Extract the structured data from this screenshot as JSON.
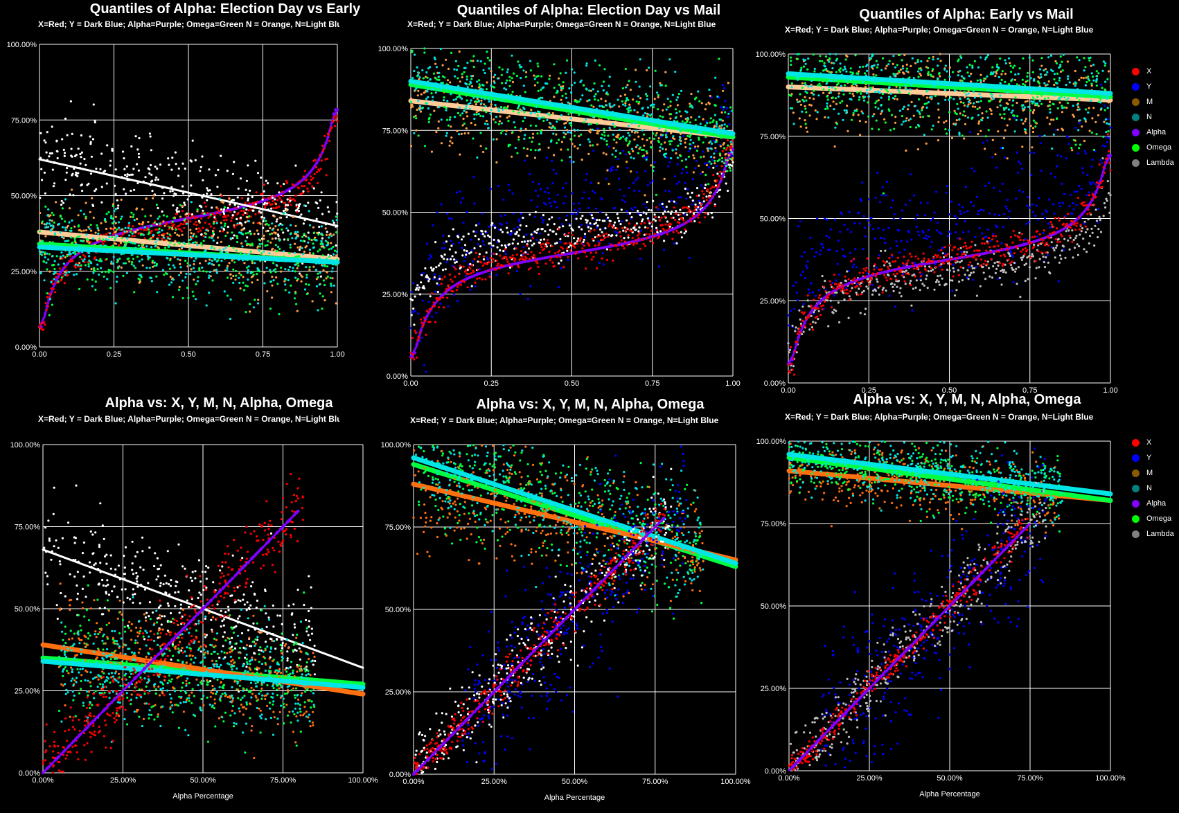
{
  "chart_data": [
    {
      "type": "scatter",
      "title": "Quantiles of Alpha:  Election Day vs Early",
      "subtitle": "X=Red; Y = Dark Blue; Alpha=Purple; Omega=Green N = Orange, N=Light Blue",
      "xlabel": "",
      "ylabel": "",
      "xlim": [
        0,
        1
      ],
      "ylim": [
        0,
        100
      ],
      "xticks": [
        "0.00",
        "0.25",
        "0.50",
        "0.75",
        "1.00"
      ],
      "yticks": [
        "0.00%",
        "25.00%",
        "50.00%",
        "75.00%",
        "100.00%"
      ],
      "grid": true,
      "series": [
        {
          "role": "alpha",
          "color": "#8000ff",
          "trend": "quantile",
          "y_start": 0,
          "y_end": 85
        },
        {
          "role": "x",
          "color": "#ff0000",
          "trend": "quantile",
          "y_start": 0,
          "y_end": 82
        },
        {
          "role": "lambda",
          "color": "#ffffff",
          "trend": "line",
          "y_start": 62,
          "y_end": 40
        },
        {
          "role": "m",
          "color": "#ffa040",
          "trend": "line",
          "y_start": 38,
          "y_end": 29
        },
        {
          "role": "omega",
          "color": "#00ff40",
          "trend": "line",
          "y_start": 34,
          "y_end": 28
        },
        {
          "role": "n",
          "color": "#00e5e5",
          "trend": "line",
          "y_start": 33,
          "y_end": 28
        }
      ]
    },
    {
      "type": "scatter",
      "title": "Quantiles of Alpha:  Election Day vs Mail",
      "subtitle": "X=Red; Y = Dark Blue; Alpha=Purple; Omega=Green N = Orange, N=Light Blue",
      "xlabel": "",
      "ylabel": "",
      "xlim": [
        0,
        1
      ],
      "ylim": [
        0,
        100
      ],
      "xticks": [
        "0.00",
        "0.25",
        "0.50",
        "0.75",
        "1.00"
      ],
      "yticks": [
        "0.00%",
        "25.00%",
        "50.00%",
        "75.00%",
        "100.00%"
      ],
      "grid": true,
      "series": [
        {
          "role": "y",
          "color": "#0000ff",
          "trend": "quantile",
          "y_start": 10,
          "y_end": 88
        },
        {
          "role": "lambda",
          "color": "#ffffff",
          "trend": "quantile",
          "y_start": 18,
          "y_end": 70
        },
        {
          "role": "alpha",
          "color": "#8000ff",
          "trend": "quantile",
          "y_start": 0,
          "y_end": 75
        },
        {
          "role": "x",
          "color": "#ff0000",
          "trend": "quantile",
          "y_start": 0,
          "y_end": 78
        },
        {
          "role": "m",
          "color": "#ffa040",
          "trend": "line",
          "y_start": 84,
          "y_end": 73
        },
        {
          "role": "omega",
          "color": "#00ff40",
          "trend": "line",
          "y_start": 89,
          "y_end": 73
        },
        {
          "role": "n",
          "color": "#00e5e5",
          "trend": "line",
          "y_start": 90,
          "y_end": 74
        }
      ]
    },
    {
      "type": "scatter",
      "title": "Quantiles of Alpha:  Early vs Mail",
      "subtitle": "X=Red; Y = Dark Blue; Alpha=Purple; Omega=Green N = Orange, N=Light Blue",
      "xlabel": "",
      "ylabel": "",
      "xlim": [
        0,
        1
      ],
      "ylim": [
        0,
        100
      ],
      "xticks": [
        "0.00",
        "0.25",
        "0.50",
        "0.75",
        "1.00"
      ],
      "yticks": [
        "0.00%",
        "25.00%",
        "50.00%",
        "75.00%",
        "100.00%"
      ],
      "grid": true,
      "legend": "right",
      "series": [
        {
          "role": "y",
          "color": "#0000ff",
          "trend": "quantile",
          "y_start": 15,
          "y_end": 82
        },
        {
          "role": "lambda",
          "color": "#c0c0c0",
          "trend": "quantile",
          "y_start": 5,
          "y_end": 62
        },
        {
          "role": "alpha",
          "color": "#8000ff",
          "trend": "quantile",
          "y_start": 0,
          "y_end": 75
        },
        {
          "role": "x",
          "color": "#ff0000",
          "trend": "quantile",
          "y_start": 0,
          "y_end": 75
        },
        {
          "role": "m",
          "color": "#ffa040",
          "trend": "line",
          "y_start": 90,
          "y_end": 86
        },
        {
          "role": "omega",
          "color": "#00ff40",
          "trend": "line",
          "y_start": 93,
          "y_end": 87
        },
        {
          "role": "n",
          "color": "#00e5e5",
          "trend": "line",
          "y_start": 94,
          "y_end": 88
        }
      ]
    },
    {
      "type": "scatter",
      "title": "Alpha vs: X, Y, M, N, Alpha, Omega",
      "subtitle": "X=Red; Y = Dark Blue; Alpha=Purple; Omega=Green N = Orange, N=Light Blue",
      "xlabel": "Alpha Percentage",
      "ylabel": "",
      "xlim": [
        0,
        100
      ],
      "ylim": [
        0,
        100
      ],
      "xticks": [
        "0.00%",
        "25.00%",
        "50.00%",
        "75.00%",
        "100.00%"
      ],
      "yticks": [
        "0.00%",
        "25.00%",
        "50.00%",
        "75.00%",
        "100.00%"
      ],
      "grid": true,
      "series": [
        {
          "role": "lambda",
          "color": "#ffffff",
          "trend": "line",
          "y_start": 68,
          "y_end": 32,
          "x_range": [
            0,
            85
          ],
          "spread": 8
        },
        {
          "role": "omega",
          "color": "#00ff40",
          "trend": "line",
          "y_start": 35,
          "y_end": 27,
          "x_range": [
            5,
            85
          ],
          "spread": 8
        },
        {
          "role": "m",
          "color": "#ff7010",
          "trend": "line",
          "y_start": 39,
          "y_end": 24,
          "x_range": [
            5,
            85
          ],
          "spread": 8
        },
        {
          "role": "n",
          "color": "#00e5e5",
          "trend": "line",
          "y_start": 34,
          "y_end": 26,
          "x_range": [
            5,
            85
          ],
          "spread": 8
        },
        {
          "role": "x",
          "color": "#ff0000",
          "trend": "identity",
          "x_range": [
            0,
            82
          ],
          "spread": 5
        },
        {
          "role": "alpha",
          "color": "#8000ff",
          "trend": "identity",
          "x_range": [
            0,
            80
          ],
          "spread": 0
        }
      ]
    },
    {
      "type": "scatter",
      "title": "Alpha vs: X, Y, M, N, Alpha, Omega",
      "subtitle": "X=Red; Y = Dark Blue; Alpha=Purple; Omega=Green N = Orange, N=Light Blue",
      "xlabel": "Alpha Percentage",
      "ylabel": "",
      "xlim": [
        0,
        100
      ],
      "ylim": [
        0,
        100
      ],
      "xticks": [
        "0.00%",
        "25.00%",
        "50.00%",
        "75.00%",
        "100.00%"
      ],
      "yticks": [
        "0.00%",
        "25.00%",
        "50.00%",
        "75.00%",
        "100.00%"
      ],
      "grid": true,
      "series": [
        {
          "role": "omega",
          "color": "#00ff40",
          "trend": "line",
          "y_start": 94,
          "y_end": 63,
          "x_range": [
            0,
            90
          ],
          "spread": 9
        },
        {
          "role": "m",
          "color": "#ff7010",
          "trend": "line",
          "y_start": 88,
          "y_end": 65,
          "x_range": [
            0,
            90
          ],
          "spread": 9
        },
        {
          "role": "n",
          "color": "#00e5e5",
          "trend": "line",
          "y_start": 96,
          "y_end": 64,
          "x_range": [
            0,
            90
          ],
          "spread": 9
        },
        {
          "role": "y",
          "color": "#0000ff",
          "trend": "identity",
          "x_range": [
            15,
            85
          ],
          "spread": 12
        },
        {
          "role": "lambda",
          "color": "#ffffff",
          "trend": "identity",
          "x_range": [
            0,
            80
          ],
          "spread": 6
        },
        {
          "role": "x",
          "color": "#ff0000",
          "trend": "identity",
          "x_range": [
            0,
            78
          ],
          "spread": 3
        },
        {
          "role": "alpha",
          "color": "#8000ff",
          "trend": "identity",
          "x_range": [
            0,
            78
          ],
          "spread": 0
        }
      ]
    },
    {
      "type": "scatter",
      "title": "Alpha vs: X, Y, M, N, Alpha, Omega",
      "subtitle": "X=Red; Y = Dark Blue; Alpha=Purple; Omega=Green N = Orange, N=Light Blue",
      "xlabel": "Alpha Percentage",
      "ylabel": "",
      "xlim": [
        0,
        100
      ],
      "ylim": [
        0,
        100
      ],
      "xticks": [
        "0.00%",
        "25.00%",
        "50.00%",
        "75.00%",
        "100.00%"
      ],
      "yticks": [
        "0.00%",
        "25.00%",
        "50.00%",
        "75.00%",
        "100.00%"
      ],
      "grid": true,
      "legend": "right",
      "series": [
        {
          "role": "m",
          "color": "#ff7010",
          "trend": "line",
          "y_start": 91,
          "y_end": 82,
          "x_range": [
            0,
            85
          ],
          "spread": 5
        },
        {
          "role": "omega",
          "color": "#00ff40",
          "trend": "line",
          "y_start": 95,
          "y_end": 82,
          "x_range": [
            0,
            85
          ],
          "spread": 5
        },
        {
          "role": "n",
          "color": "#00e5e5",
          "trend": "line",
          "y_start": 96,
          "y_end": 84,
          "x_range": [
            0,
            85
          ],
          "spread": 5
        },
        {
          "role": "y",
          "color": "#0000ff",
          "trend": "identity",
          "x_range": [
            10,
            80
          ],
          "spread": 12
        },
        {
          "role": "lambda",
          "color": "#c0c0c0",
          "trend": "identity",
          "x_range": [
            0,
            80
          ],
          "spread": 5
        },
        {
          "role": "x",
          "color": "#ff0000",
          "trend": "identity",
          "x_range": [
            0,
            75
          ],
          "spread": 2
        },
        {
          "role": "alpha",
          "color": "#8000ff",
          "trend": "identity",
          "x_range": [
            0,
            75
          ],
          "spread": 0
        }
      ]
    }
  ],
  "legend": {
    "items": [
      {
        "label": "X",
        "color": "#ff0000"
      },
      {
        "label": "Y",
        "color": "#0000ff"
      },
      {
        "label": "M",
        "color": "#8b5a00"
      },
      {
        "label": "N",
        "color": "#008080"
      },
      {
        "label": "Alpha",
        "color": "#8000ff"
      },
      {
        "label": "Omega",
        "color": "#00ff00"
      },
      {
        "label": "Lambda",
        "color": "#808080"
      }
    ]
  }
}
